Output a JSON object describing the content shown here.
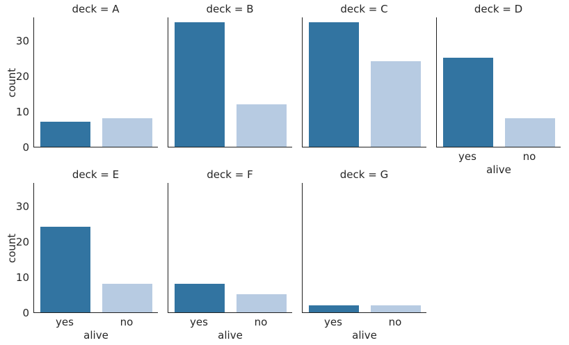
{
  "chart_data": {
    "type": "bar",
    "kind": "faceted_countplot",
    "facet_variable": "deck",
    "facets": [
      {
        "title": "deck = A",
        "values": [
          7,
          8
        ]
      },
      {
        "title": "deck = B",
        "values": [
          35,
          12
        ]
      },
      {
        "title": "deck = C",
        "values": [
          35,
          24
        ]
      },
      {
        "title": "deck = D",
        "values": [
          25,
          8
        ]
      },
      {
        "title": "deck = E",
        "values": [
          24,
          8
        ]
      },
      {
        "title": "deck = F",
        "values": [
          8,
          5
        ]
      },
      {
        "title": "deck = G",
        "values": [
          2,
          2
        ]
      }
    ],
    "categories": [
      "yes",
      "no"
    ],
    "xlabel": "alive",
    "ylabel": "count",
    "yticks": [
      0,
      10,
      20,
      30
    ],
    "ylim": [
      0,
      36.6
    ],
    "col_wrap": 4,
    "grid": false,
    "legend": "none",
    "colors": {
      "yes": "#3274a1",
      "no": "#b7cbe2"
    },
    "text_color": "#262626",
    "spine_color": "#1f1f1f",
    "background_color": "#ffffff"
  }
}
